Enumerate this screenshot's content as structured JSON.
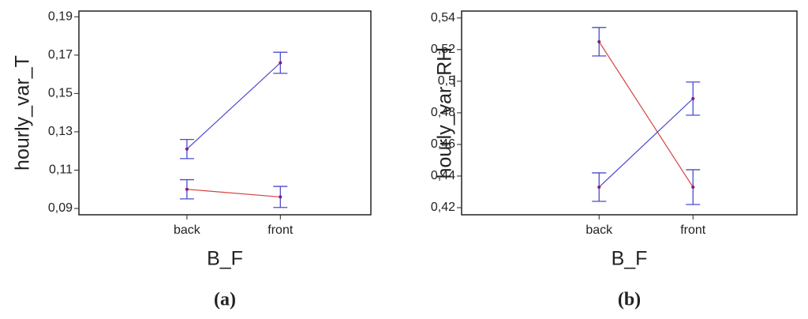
{
  "chart_data": [
    {
      "type": "line",
      "ylabel": "hourly_var_T",
      "xlabel": "B_F",
      "caption": "(a)",
      "categories": [
        "back",
        "front"
      ],
      "ylim": [
        0.0867,
        0.193
      ],
      "yticks": [
        {
          "value": 0.09,
          "label": "0,09"
        },
        {
          "value": 0.11,
          "label": "0,11"
        },
        {
          "value": 0.13,
          "label": "0,13"
        },
        {
          "value": 0.15,
          "label": "0,15"
        },
        {
          "value": 0.17,
          "label": "0,17"
        },
        {
          "value": 0.19,
          "label": "0,19"
        }
      ],
      "series": [
        {
          "color": "#4b4bd0",
          "values": [
            0.121,
            0.166
          ],
          "errors": [
            0.005,
            0.0055
          ]
        },
        {
          "color": "#d84040",
          "values": [
            0.1,
            0.096
          ],
          "errors": [
            0.005,
            0.0055
          ]
        }
      ]
    },
    {
      "type": "line",
      "ylabel": "hourly_var_RH",
      "xlabel": "B_F",
      "caption": "(b)",
      "categories": [
        "back",
        "front"
      ],
      "ylim": [
        0.4155,
        0.5444
      ],
      "yticks": [
        {
          "value": 0.42,
          "label": "0,42"
        },
        {
          "value": 0.44,
          "label": "0,44"
        },
        {
          "value": 0.46,
          "label": "0,46"
        },
        {
          "value": 0.48,
          "label": "0,48"
        },
        {
          "value": 0.5,
          "label": "0,5"
        },
        {
          "value": 0.52,
          "label": "0,52"
        },
        {
          "value": 0.54,
          "label": "0,54"
        }
      ],
      "series": [
        {
          "color": "#d84040",
          "values": [
            0.525,
            0.433
          ],
          "errors": [
            0.009,
            0.011
          ]
        },
        {
          "color": "#4b4bd0",
          "values": [
            0.433,
            0.489
          ],
          "errors": [
            0.009,
            0.0105
          ]
        }
      ]
    }
  ]
}
